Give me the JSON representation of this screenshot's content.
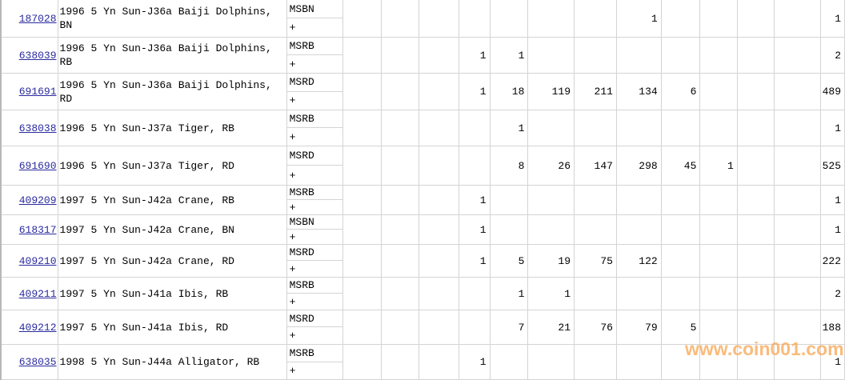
{
  "rows": [
    {
      "id": "187028",
      "desc": "1996 5 Yn Sun-J36a Baiji Dolphins, BN",
      "grade": "MSBN",
      "plus": "+",
      "cells": [
        "",
        "",
        "",
        "",
        "",
        "",
        "",
        "1",
        "",
        "",
        "",
        ""
      ],
      "total": "1"
    },
    {
      "id": "638039",
      "desc": "1996 5 Yn Sun-J36a Baiji Dolphins, RB",
      "grade": "MSRB",
      "plus": "+",
      "cells": [
        "",
        "",
        "",
        "1",
        "1",
        "",
        "",
        "",
        "",
        "",
        "",
        ""
      ],
      "total": "2"
    },
    {
      "id": "691691",
      "desc": "1996 5 Yn Sun-J36a Baiji Dolphins, RD",
      "grade": "MSRD",
      "plus": "+",
      "cells": [
        "",
        "",
        "",
        "1",
        "18",
        "119",
        "211",
        "134",
        "6",
        "",
        "",
        ""
      ],
      "total": "489"
    },
    {
      "id": "638038",
      "desc": "1996 5 Yn Sun-J37a Tiger, RB",
      "grade": "MSRB",
      "plus": "+",
      "cells": [
        "",
        "",
        "",
        "",
        "1",
        "",
        "",
        "",
        "",
        "",
        "",
        ""
      ],
      "total": "1"
    },
    {
      "id": "691690",
      "desc": "1996 5 Yn Sun-J37a Tiger, RD",
      "grade": "MSRD",
      "plus": "+",
      "cells": [
        "",
        "",
        "",
        "",
        "8",
        "26",
        "147",
        "298",
        "45",
        "1",
        "",
        ""
      ],
      "total": "525"
    },
    {
      "id": "409209",
      "desc": "1997 5 Yn Sun-J42a Crane, RB",
      "grade": "MSRB",
      "plus": "+",
      "cells": [
        "",
        "",
        "",
        "1",
        "",
        "",
        "",
        "",
        "",
        "",
        "",
        ""
      ],
      "total": "1"
    },
    {
      "id": "618317",
      "desc": "1997 5 Yn Sun-J42a Crane, BN",
      "grade": "MSBN",
      "plus": "+",
      "cells": [
        "",
        "",
        "",
        "1",
        "",
        "",
        "",
        "",
        "",
        "",
        "",
        ""
      ],
      "total": "1"
    },
    {
      "id": "409210",
      "desc": "1997 5 Yn Sun-J42a Crane, RD",
      "grade": "MSRD",
      "plus": "+",
      "cells": [
        "",
        "",
        "",
        "1",
        "5",
        "19",
        "75",
        "122",
        "",
        "",
        "",
        ""
      ],
      "total": "222"
    },
    {
      "id": "409211",
      "desc": "1997 5 Yn Sun-J41a Ibis, RB",
      "grade": "MSRB",
      "plus": "+",
      "cells": [
        "",
        "",
        "",
        "",
        "1",
        "1",
        "",
        "",
        "",
        "",
        "",
        ""
      ],
      "total": "2"
    },
    {
      "id": "409212",
      "desc": "1997 5 Yn Sun-J41a Ibis, RD",
      "grade": "MSRD",
      "plus": "+",
      "cells": [
        "",
        "",
        "",
        "",
        "7",
        "21",
        "76",
        "79",
        "5",
        "",
        "",
        ""
      ],
      "total": "188"
    },
    {
      "id": "638035",
      "desc": "1998 5 Yn Sun-J44a Alligator, RB",
      "grade": "MSRB",
      "plus": "+",
      "cells": [
        "",
        "",
        "",
        "1",
        "",
        "",
        "",
        "",
        "",
        "",
        "",
        ""
      ],
      "total": "1"
    }
  ],
  "watermark": "www.coin001.com",
  "colors": {
    "link": "#2a2aa0",
    "watermark": "#f9a550",
    "grid": "#d4d4d4"
  }
}
